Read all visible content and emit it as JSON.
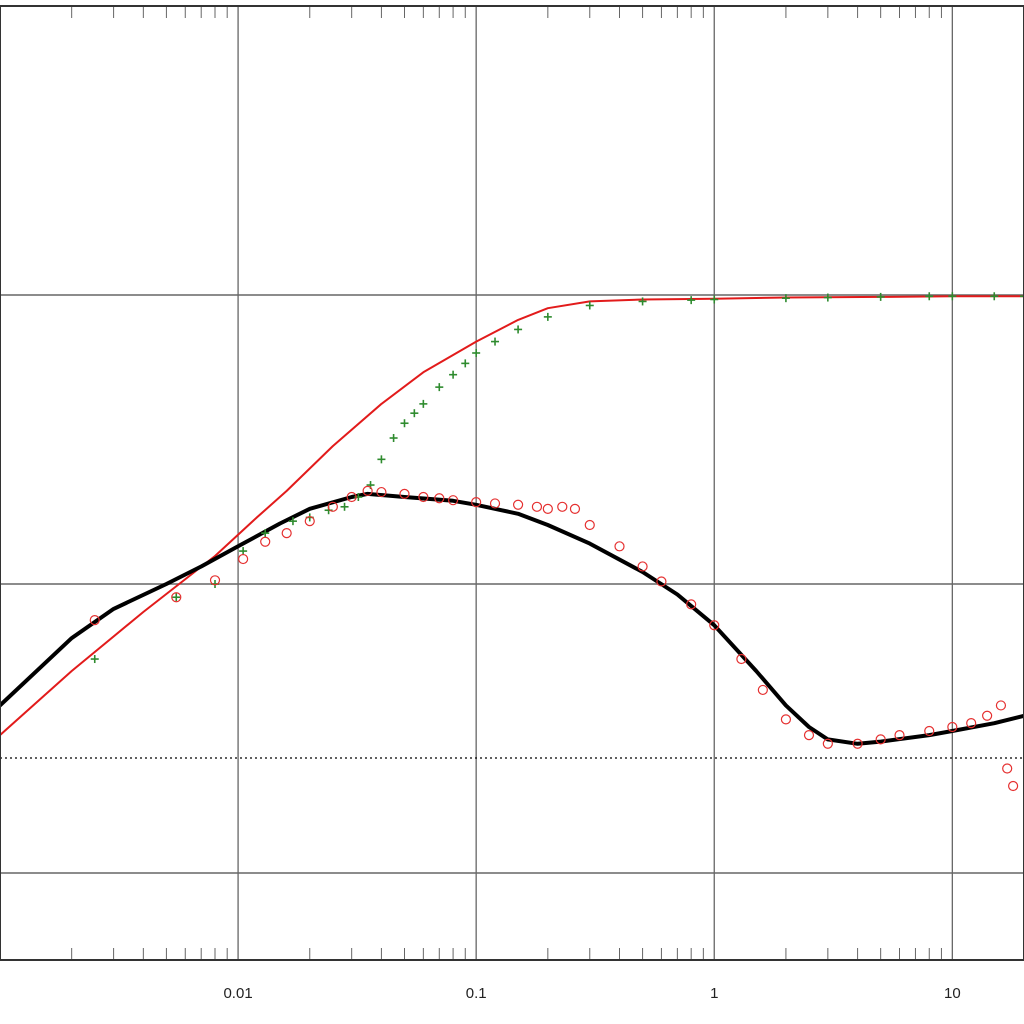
{
  "chart_data": {
    "type": "scatter",
    "title": "",
    "xlabel": "",
    "ylabel": "",
    "x_scale": "log",
    "y_scale": "log",
    "xlim": [
      0.001,
      20
    ],
    "ylim": [
      0.05,
      100
    ],
    "grid": true,
    "legend": "none",
    "x_tick_labels": [
      {
        "value": 0.01,
        "label": "0.01"
      },
      {
        "value": 0.1,
        "label": "0.1"
      },
      {
        "value": 1,
        "label": "1"
      },
      {
        "value": 10,
        "label": "10"
      }
    ],
    "reference_line": {
      "y": 0.25,
      "style": "dotted",
      "color": "#000000"
    },
    "colors": {
      "pressure_points": "#2e8b2e",
      "derivative_points": "#e53030",
      "model_pressure_line": "#e21b1b",
      "model_derivative_line": "#000000",
      "grid_major": "#666666",
      "grid_minor": "#666666"
    },
    "series": [
      {
        "kind": "points",
        "marker": "plus",
        "color": "#2e8b2e",
        "x": [
          0.0025,
          0.0055,
          0.008,
          0.0105,
          0.013,
          0.017,
          0.02,
          0.024,
          0.028,
          0.032,
          0.036,
          0.04,
          0.045,
          0.05,
          0.055,
          0.06,
          0.07,
          0.08,
          0.09,
          0.1,
          0.12,
          0.15,
          0.2,
          0.3,
          0.5,
          0.8,
          1,
          2,
          3,
          5,
          8,
          10,
          15,
          20
        ],
        "y": [
          0.55,
          0.9,
          1.0,
          1.3,
          1.5,
          1.65,
          1.7,
          1.8,
          1.85,
          2.0,
          2.2,
          2.7,
          3.2,
          3.6,
          3.9,
          4.2,
          4.8,
          5.3,
          5.8,
          6.3,
          6.9,
          7.6,
          8.4,
          9.2,
          9.5,
          9.6,
          9.65,
          9.75,
          9.8,
          9.85,
          9.9,
          9.9,
          9.9,
          9.9
        ]
      },
      {
        "kind": "points",
        "marker": "circle",
        "color": "#e53030",
        "x": [
          0.0025,
          0.0055,
          0.008,
          0.0105,
          0.013,
          0.016,
          0.02,
          0.025,
          0.03,
          0.035,
          0.04,
          0.05,
          0.06,
          0.07,
          0.08,
          0.1,
          0.12,
          0.15,
          0.18,
          0.2,
          0.23,
          0.26,
          0.3,
          0.4,
          0.5,
          0.6,
          0.8,
          1,
          1.3,
          1.6,
          2,
          2.5,
          3,
          4,
          5,
          6,
          8,
          10,
          12,
          14,
          16,
          17,
          18
        ],
        "y": [
          0.75,
          0.9,
          1.03,
          1.22,
          1.4,
          1.5,
          1.65,
          1.85,
          2.0,
          2.1,
          2.08,
          2.05,
          2.0,
          1.98,
          1.95,
          1.92,
          1.9,
          1.88,
          1.85,
          1.82,
          1.85,
          1.82,
          1.6,
          1.35,
          1.15,
          1.02,
          0.85,
          0.72,
          0.55,
          0.43,
          0.34,
          0.3,
          0.28,
          0.28,
          0.29,
          0.3,
          0.31,
          0.32,
          0.33,
          0.35,
          0.38,
          0.23,
          0.2
        ]
      },
      {
        "kind": "line",
        "color": "#e21b1b",
        "width": 2,
        "x": [
          0.001,
          0.002,
          0.004,
          0.008,
          0.012,
          0.016,
          0.025,
          0.04,
          0.06,
          0.1,
          0.15,
          0.2,
          0.3,
          0.5,
          1,
          2,
          5,
          10,
          20
        ],
        "y": [
          0.3,
          0.5,
          0.8,
          1.25,
          1.7,
          2.1,
          3.0,
          4.2,
          5.4,
          6.9,
          8.2,
          9.0,
          9.5,
          9.65,
          9.7,
          9.8,
          9.85,
          9.9,
          9.9
        ]
      },
      {
        "kind": "line",
        "color": "#000000",
        "width": 4,
        "x": [
          0.001,
          0.0015,
          0.002,
          0.003,
          0.005,
          0.007,
          0.01,
          0.015,
          0.02,
          0.03,
          0.035,
          0.05,
          0.08,
          0.1,
          0.15,
          0.2,
          0.3,
          0.5,
          0.7,
          1,
          1.5,
          2,
          2.5,
          3,
          4,
          5,
          8,
          10,
          15,
          20
        ],
        "y": [
          0.38,
          0.52,
          0.65,
          0.82,
          1.0,
          1.15,
          1.35,
          1.62,
          1.82,
          2.0,
          2.05,
          2.0,
          1.94,
          1.88,
          1.75,
          1.6,
          1.38,
          1.1,
          0.92,
          0.72,
          0.5,
          0.38,
          0.32,
          0.29,
          0.28,
          0.285,
          0.3,
          0.31,
          0.33,
          0.35
        ]
      }
    ]
  }
}
